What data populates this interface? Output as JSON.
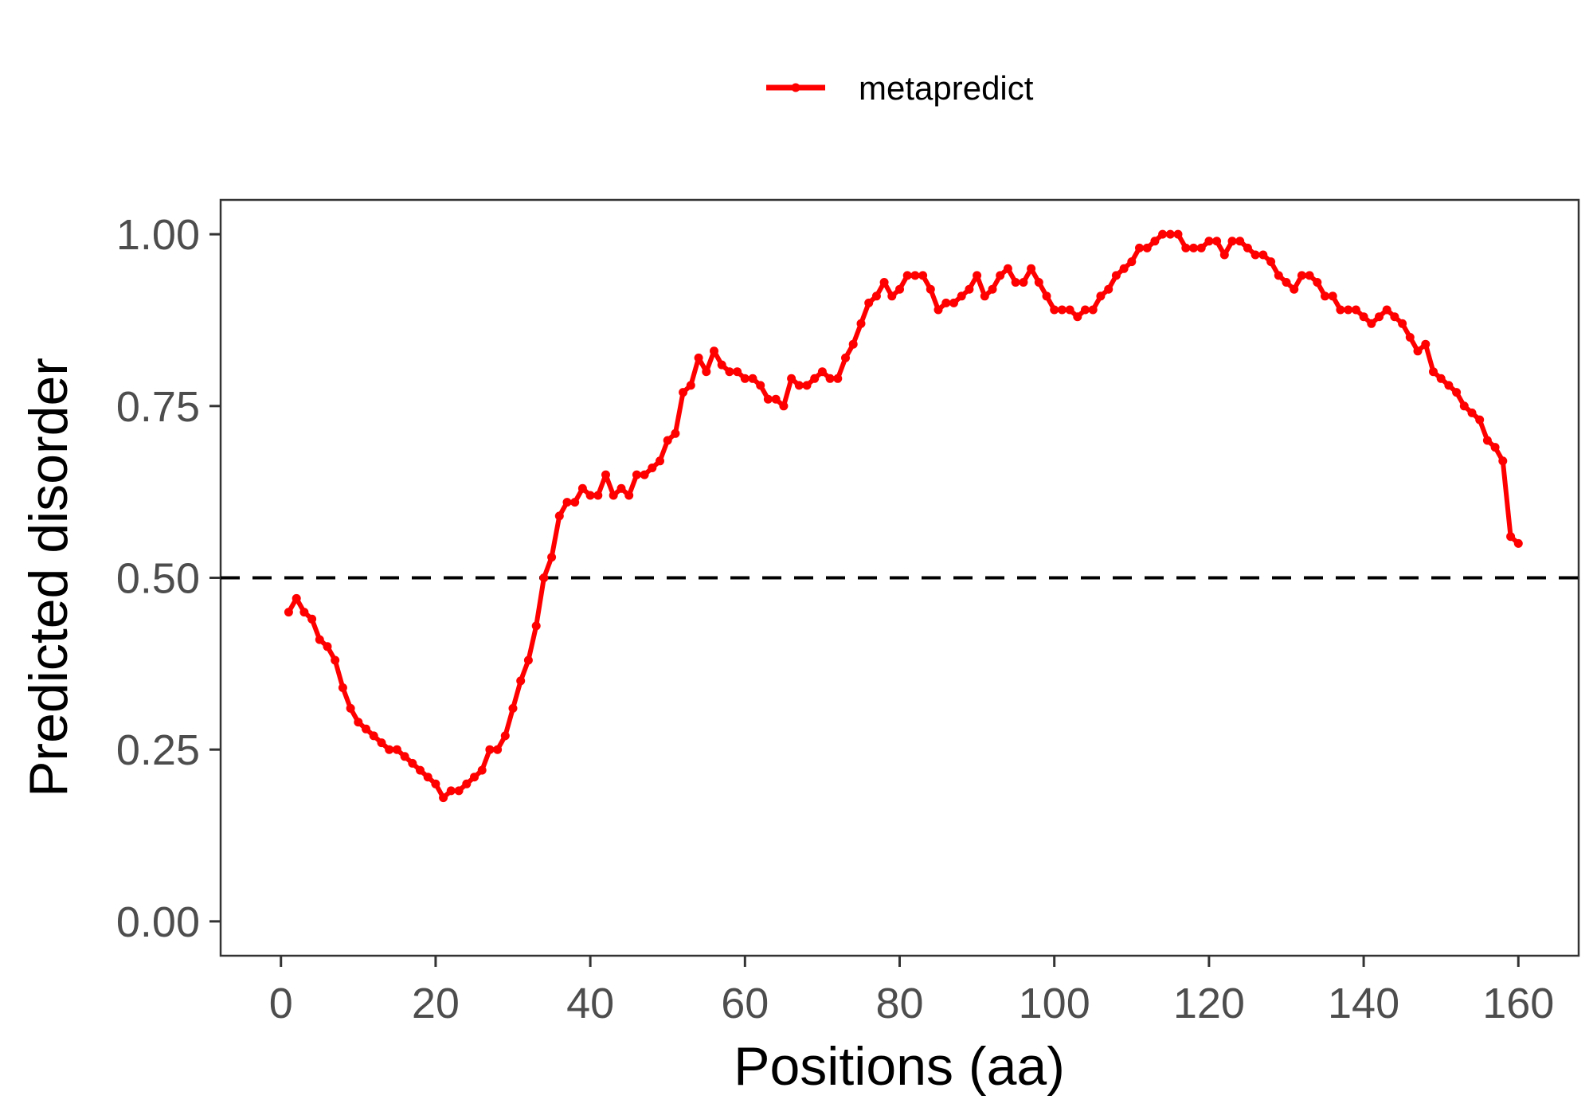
{
  "chart_data": {
    "type": "line",
    "title": "",
    "xlabel": "Positions (aa)",
    "ylabel": "Predicted disorder",
    "xlim": [
      -7.8,
      167.8
    ],
    "ylim": [
      -0.05,
      1.05
    ],
    "xticks": [
      0,
      20,
      40,
      60,
      80,
      100,
      120,
      140,
      160
    ],
    "yticks": [
      0.0,
      0.25,
      0.5,
      0.75,
      1.0
    ],
    "ytick_labels": [
      "0.00",
      "0.25",
      "0.50",
      "0.75",
      "1.00"
    ],
    "grid": false,
    "legend_position": "top",
    "threshold": {
      "value": 0.5,
      "style": "dashed",
      "color": "#000000"
    },
    "series": [
      {
        "name": "metapredict",
        "color": "#ff0000",
        "x": [
          1,
          2,
          3,
          4,
          5,
          6,
          7,
          8,
          9,
          10,
          11,
          12,
          13,
          14,
          15,
          16,
          17,
          18,
          19,
          20,
          21,
          22,
          23,
          24,
          25,
          26,
          27,
          28,
          29,
          30,
          31,
          32,
          33,
          34,
          35,
          36,
          37,
          38,
          39,
          40,
          41,
          42,
          43,
          44,
          45,
          46,
          47,
          48,
          49,
          50,
          51,
          52,
          53,
          54,
          55,
          56,
          57,
          58,
          59,
          60,
          61,
          62,
          63,
          64,
          65,
          66,
          67,
          68,
          69,
          70,
          71,
          72,
          73,
          74,
          75,
          76,
          77,
          78,
          79,
          80,
          81,
          82,
          83,
          84,
          85,
          86,
          87,
          88,
          89,
          90,
          91,
          92,
          93,
          94,
          95,
          96,
          97,
          98,
          99,
          100,
          101,
          102,
          103,
          104,
          105,
          106,
          107,
          108,
          109,
          110,
          111,
          112,
          113,
          114,
          115,
          116,
          117,
          118,
          119,
          120,
          121,
          122,
          123,
          124,
          125,
          126,
          127,
          128,
          129,
          130,
          131,
          132,
          133,
          134,
          135,
          136,
          137,
          138,
          139,
          140,
          141,
          142,
          143,
          144,
          145,
          146,
          147,
          148,
          149,
          150,
          151,
          152,
          153,
          154,
          155,
          156,
          157,
          158,
          159,
          160
        ],
        "values": [
          0.45,
          0.47,
          0.45,
          0.44,
          0.41,
          0.4,
          0.38,
          0.34,
          0.31,
          0.29,
          0.28,
          0.27,
          0.26,
          0.25,
          0.25,
          0.24,
          0.23,
          0.22,
          0.21,
          0.2,
          0.18,
          0.19,
          0.19,
          0.2,
          0.21,
          0.22,
          0.25,
          0.25,
          0.27,
          0.31,
          0.35,
          0.38,
          0.43,
          0.5,
          0.53,
          0.59,
          0.61,
          0.61,
          0.63,
          0.62,
          0.62,
          0.65,
          0.62,
          0.63,
          0.62,
          0.65,
          0.65,
          0.66,
          0.67,
          0.7,
          0.71,
          0.77,
          0.78,
          0.82,
          0.8,
          0.83,
          0.81,
          0.8,
          0.8,
          0.79,
          0.79,
          0.78,
          0.76,
          0.76,
          0.75,
          0.79,
          0.78,
          0.78,
          0.79,
          0.8,
          0.79,
          0.79,
          0.82,
          0.84,
          0.87,
          0.9,
          0.91,
          0.93,
          0.91,
          0.92,
          0.94,
          0.94,
          0.94,
          0.92,
          0.89,
          0.9,
          0.9,
          0.91,
          0.92,
          0.94,
          0.91,
          0.92,
          0.94,
          0.95,
          0.93,
          0.93,
          0.95,
          0.93,
          0.91,
          0.89,
          0.89,
          0.89,
          0.88,
          0.89,
          0.89,
          0.91,
          0.92,
          0.94,
          0.95,
          0.96,
          0.98,
          0.98,
          0.99,
          1.0,
          1.0,
          1.0,
          0.98,
          0.98,
          0.98,
          0.99,
          0.99,
          0.97,
          0.99,
          0.99,
          0.98,
          0.97,
          0.97,
          0.96,
          0.94,
          0.93,
          0.92,
          0.94,
          0.94,
          0.93,
          0.91,
          0.91,
          0.89,
          0.89,
          0.89,
          0.88,
          0.87,
          0.88,
          0.89,
          0.88,
          0.87,
          0.85,
          0.83,
          0.84,
          0.8,
          0.79,
          0.78,
          0.77,
          0.75,
          0.74,
          0.73,
          0.7,
          0.69,
          0.67,
          0.56,
          0.55
        ]
      }
    ]
  }
}
